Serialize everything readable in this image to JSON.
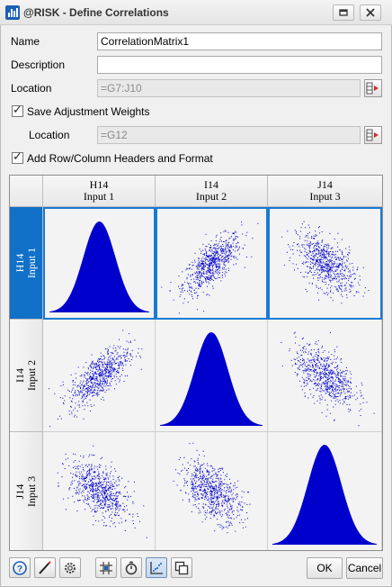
{
  "window": {
    "title": "@RISK - Define Correlations",
    "icon": "bar-chart-icon"
  },
  "form": {
    "name_label": "Name",
    "name_value": "CorrelationMatrix1",
    "description_label": "Description",
    "description_value": "",
    "location_label": "Location",
    "location_value": "=G7:J10",
    "save_weights_label": "Save Adjustment Weights",
    "save_weights_checked": true,
    "weights_location_label": "Location",
    "weights_location_value": "=G12",
    "headers_label": "Add Row/Column Headers and Format",
    "headers_checked": true
  },
  "matrix": {
    "columns": [
      {
        "cell": "H14",
        "name": "Input 1"
      },
      {
        "cell": "I14",
        "name": "Input 2"
      },
      {
        "cell": "J14",
        "name": "Input 3"
      }
    ],
    "rows": [
      {
        "cell": "H14",
        "name": "Input 1",
        "selected": true
      },
      {
        "cell": "I14",
        "name": "Input 2",
        "selected": false
      },
      {
        "cell": "J14",
        "name": "Input 3",
        "selected": false
      }
    ],
    "correlations": [
      [
        1,
        0.7,
        -0.5
      ],
      [
        0.7,
        1,
        -0.5
      ],
      [
        -0.5,
        -0.5,
        1
      ]
    ],
    "plot_color": "#0000cc",
    "selection_color": "#1170c8"
  },
  "toolbar": {
    "icons": [
      "help-icon",
      "edit-icon",
      "settings-icon",
      "matrix-icon",
      "timer-icon",
      "scatter-icon",
      "copy-icon"
    ],
    "ok_label": "OK",
    "cancel_label": "Cancel"
  }
}
